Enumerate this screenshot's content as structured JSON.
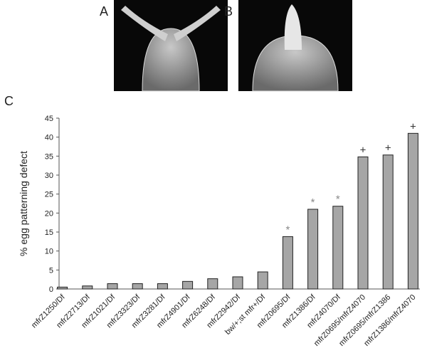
{
  "panel_labels": [
    "A",
    "B",
    "C"
  ],
  "chart_data": {
    "type": "bar",
    "y_label": "% egg patterning defect",
    "categories": [
      "mfrZ1250/Df",
      "mfrZ2713/Df",
      "mfrZ1021/Df",
      "mfrZ3323/Df",
      "mfrZ3281/Df",
      "mfrZ4901/Df",
      "mfrZ6248/Df",
      "mfrZ2942/Df",
      "bw/+;st mfr+/Df",
      "mfrZ0695/Df",
      "mfrZ1386/Df",
      "mfrZ4070/Df",
      "mfrZ0695/mfrZ4070",
      "mfrZ0695/mfrZ1386",
      "mfrZ1386/mfrZ4070"
    ],
    "values": [
      0.5,
      0.8,
      1.4,
      1.4,
      1.4,
      2.0,
      2.7,
      3.2,
      4.5,
      13.8,
      21.0,
      21.8,
      34.8,
      35.3,
      41.0
    ],
    "annotations": [
      null,
      null,
      null,
      null,
      null,
      null,
      null,
      null,
      null,
      "*",
      "*",
      "*",
      "+",
      "+",
      "+"
    ],
    "color": "#a6a6a6",
    "ylim": [
      0,
      45
    ],
    "yticks": [
      0,
      5,
      10,
      15,
      20,
      25,
      30,
      35,
      40,
      45
    ]
  }
}
